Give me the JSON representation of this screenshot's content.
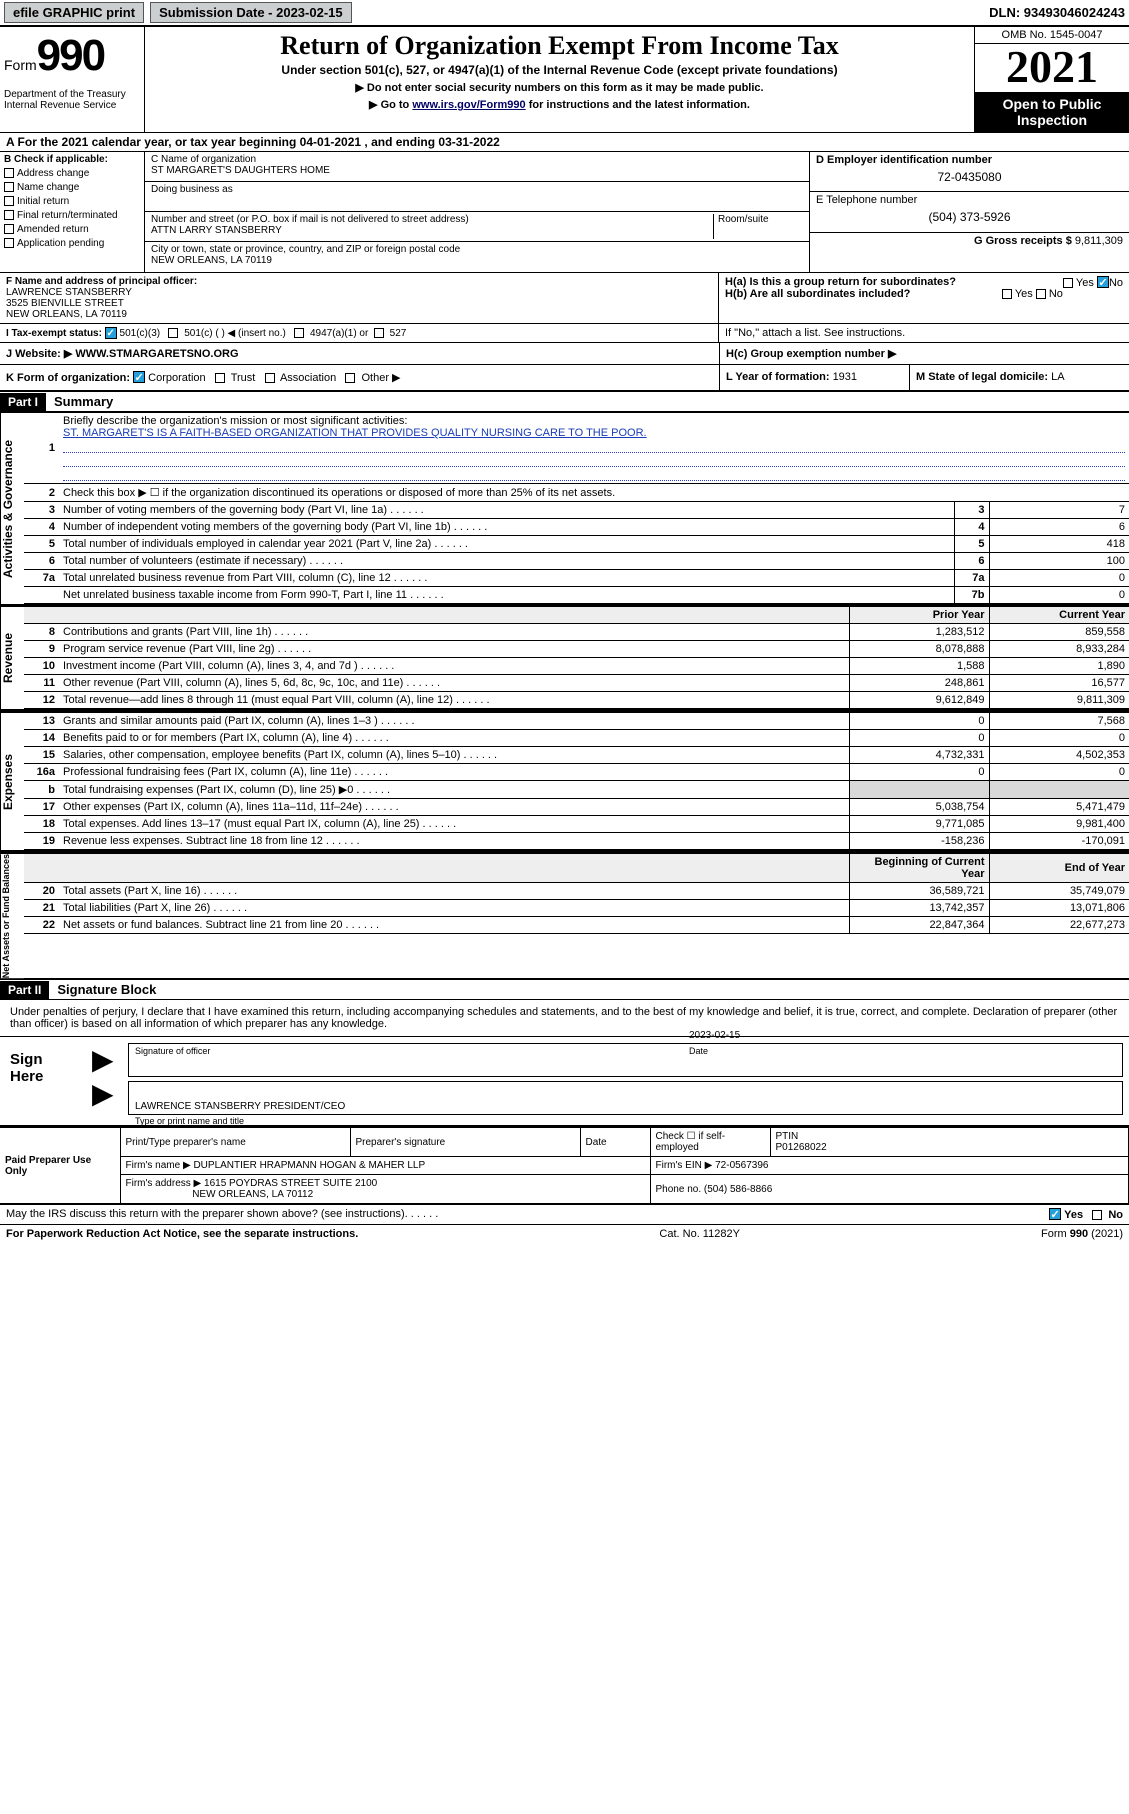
{
  "top": {
    "efile": "efile GRAPHIC print",
    "subdate_label": "Submission Date - ",
    "subdate": "2023-02-15",
    "dln": "DLN: 93493046024243"
  },
  "header": {
    "form": "Form",
    "num": "990",
    "dept": "Department of the Treasury\nInternal Revenue Service",
    "title": "Return of Organization Exempt From Income Tax",
    "subtitle": "Under section 501(c), 527, or 4947(a)(1) of the Internal Revenue Code (except private foundations)",
    "instr1": "Do not enter social security numbers on this form as it may be made public.",
    "instr2_pre": "Go to ",
    "instr2_link": "www.irs.gov/Form990",
    "instr2_post": " for instructions and the latest information.",
    "omb": "OMB No. 1545-0047",
    "year": "2021",
    "inspection": "Open to Public Inspection"
  },
  "a": {
    "label": "A For the 2021 calendar year, or tax year beginning ",
    "begin": "04-01-2021",
    "mid": " , and ending ",
    "end": "03-31-2022"
  },
  "b": {
    "header": "B Check if applicable:",
    "opts": [
      "Address change",
      "Name change",
      "Initial return",
      "Final return/terminated",
      "Amended return",
      "Application pending"
    ]
  },
  "c": {
    "name_label": "C Name of organization",
    "name": "ST MARGARET'S DAUGHTERS HOME",
    "dba_label": "Doing business as",
    "addr_label": "Number and street (or P.O. box if mail is not delivered to street address)",
    "room_label": "Room/suite",
    "addr": "ATTN LARRY STANSBERRY",
    "city_label": "City or town, state or province, country, and ZIP or foreign postal code",
    "city": "NEW ORLEANS, LA  70119"
  },
  "d": {
    "label": "D Employer identification number",
    "val": "72-0435080"
  },
  "e": {
    "label": "E Telephone number",
    "val": "(504) 373-5926"
  },
  "g": {
    "label": "G Gross receipts $ ",
    "val": "9,811,309"
  },
  "f": {
    "label": "F Name and address of principal officer:",
    "name": "LAWRENCE STANSBERRY",
    "addr1": "3525 BIENVILLE STREET",
    "addr2": "NEW ORLEANS, LA  70119"
  },
  "h": {
    "a": "H(a)  Is this a group return for subordinates?",
    "a_yes": "Yes",
    "a_no": "No",
    "b": "H(b)  Are all subordinates included?",
    "b_yes": "Yes",
    "b_no": "No",
    "note": "If \"No,\" attach a list. See instructions.",
    "c": "H(c)  Group exemption number ▶"
  },
  "i": {
    "label": "I   Tax-exempt status:",
    "o1": "501(c)(3)",
    "o2": "501(c) (  ) ◀ (insert no.)",
    "o3": "4947(a)(1) or",
    "o4": "527"
  },
  "j": {
    "label": "J   Website: ▶ ",
    "val": "WWW.STMARGARETSNO.ORG"
  },
  "k": {
    "label": "K Form of organization:",
    "opts": [
      "Corporation",
      "Trust",
      "Association",
      "Other ▶"
    ]
  },
  "l": {
    "label": "L Year of formation: ",
    "val": "1931"
  },
  "m": {
    "label": "M State of legal domicile: ",
    "val": "LA"
  },
  "part1": {
    "bar": "Part I",
    "title": "Summary",
    "l1": "Briefly describe the organization's mission or most significant activities:",
    "mission": "ST. MARGARET'S IS A FAITH-BASED ORGANIZATION THAT PROVIDES QUALITY NURSING CARE TO THE POOR.",
    "l2": "Check this box ▶ ☐  if the organization discontinued its operations or disposed of more than 25% of its net assets.",
    "rows_gov": [
      {
        "n": "3",
        "label": "Number of voting members of the governing body (Part VI, line 1a)",
        "box": "3",
        "val": "7"
      },
      {
        "n": "4",
        "label": "Number of independent voting members of the governing body (Part VI, line 1b)",
        "box": "4",
        "val": "6"
      },
      {
        "n": "5",
        "label": "Total number of individuals employed in calendar year 2021 (Part V, line 2a)",
        "box": "5",
        "val": "418"
      },
      {
        "n": "6",
        "label": "Total number of volunteers (estimate if necessary)",
        "box": "6",
        "val": "100"
      },
      {
        "n": "7a",
        "label": "Total unrelated business revenue from Part VIII, column (C), line 12",
        "box": "7a",
        "val": "0"
      },
      {
        "n": "  ",
        "label": "Net unrelated business taxable income from Form 990-T, Part I, line 11",
        "box": "7b",
        "val": "0"
      }
    ],
    "hd_prior": "Prior Year",
    "hd_curr": "Current Year",
    "rows_rev": [
      {
        "n": "8",
        "label": "Contributions and grants (Part VIII, line 1h)",
        "p": "1,283,512",
        "c": "859,558"
      },
      {
        "n": "9",
        "label": "Program service revenue (Part VIII, line 2g)",
        "p": "8,078,888",
        "c": "8,933,284"
      },
      {
        "n": "10",
        "label": "Investment income (Part VIII, column (A), lines 3, 4, and 7d )",
        "p": "1,588",
        "c": "1,890"
      },
      {
        "n": "11",
        "label": "Other revenue (Part VIII, column (A), lines 5, 6d, 8c, 9c, 10c, and 11e)",
        "p": "248,861",
        "c": "16,577"
      },
      {
        "n": "12",
        "label": "Total revenue—add lines 8 through 11 (must equal Part VIII, column (A), line 12)",
        "p": "9,612,849",
        "c": "9,811,309"
      }
    ],
    "rows_exp": [
      {
        "n": "13",
        "label": "Grants and similar amounts paid (Part IX, column (A), lines 1–3 )",
        "p": "0",
        "c": "7,568"
      },
      {
        "n": "14",
        "label": "Benefits paid to or for members (Part IX, column (A), line 4)",
        "p": "0",
        "c": "0"
      },
      {
        "n": "15",
        "label": "Salaries, other compensation, employee benefits (Part IX, column (A), lines 5–10)",
        "p": "4,732,331",
        "c": "4,502,353"
      },
      {
        "n": "16a",
        "label": "Professional fundraising fees (Part IX, column (A), line 11e)",
        "p": "0",
        "c": "0"
      },
      {
        "n": "b",
        "label": "Total fundraising expenses (Part IX, column (D), line 25) ▶0",
        "p": "",
        "c": "",
        "shade": true
      },
      {
        "n": "17",
        "label": "Other expenses (Part IX, column (A), lines 11a–11d, 11f–24e)",
        "p": "5,038,754",
        "c": "5,471,479"
      },
      {
        "n": "18",
        "label": "Total expenses. Add lines 13–17 (must equal Part IX, column (A), line 25)",
        "p": "9,771,085",
        "c": "9,981,400"
      },
      {
        "n": "19",
        "label": "Revenue less expenses. Subtract line 18 from line 12",
        "p": "-158,236",
        "c": "-170,091"
      }
    ],
    "hd_begin": "Beginning of Current Year",
    "hd_end": "End of Year",
    "rows_net": [
      {
        "n": "20",
        "label": "Total assets (Part X, line 16)",
        "p": "36,589,721",
        "c": "35,749,079"
      },
      {
        "n": "21",
        "label": "Total liabilities (Part X, line 26)",
        "p": "13,742,357",
        "c": "13,071,806"
      },
      {
        "n": "22",
        "label": "Net assets or fund balances. Subtract line 21 from line 20",
        "p": "22,847,364",
        "c": "22,677,273"
      }
    ],
    "side_gov": "Activities & Governance",
    "side_rev": "Revenue",
    "side_exp": "Expenses",
    "side_net": "Net Assets or Fund Balances"
  },
  "part2": {
    "bar": "Part II",
    "title": "Signature Block",
    "decl": "Under penalties of perjury, I declare that I have examined this return, including accompanying schedules and statements, and to the best of my knowledge and belief, it is true, correct, and complete. Declaration of preparer (other than officer) is based on all information of which preparer has any knowledge.",
    "sign_here": "Sign Here",
    "sig_officer": "Signature of officer",
    "sig_date_label": "Date",
    "sig_date": "2023-02-15",
    "sig_name": "LAWRENCE STANSBERRY  PRESIDENT/CEO",
    "sig_name_label": "Type or print name and title"
  },
  "prep": {
    "side": "Paid Preparer Use Only",
    "h1": "Print/Type preparer's name",
    "h2": "Preparer's signature",
    "h3": "Date",
    "h4_pre": "Check ☐ if self-employed",
    "h5": "PTIN",
    "ptin": "P01268022",
    "firm_label": "Firm's name    ▶ ",
    "firm": "DUPLANTIER HRAPMANN HOGAN & MAHER LLP",
    "ein_label": "Firm's EIN ▶ ",
    "ein": "72-0567396",
    "addr_label": "Firm's address ▶ ",
    "addr1": "1615 POYDRAS STREET SUITE 2100",
    "addr2": "NEW ORLEANS, LA  70112",
    "phone_label": "Phone no. ",
    "phone": "(504) 586-8866"
  },
  "foot": {
    "q": "May the IRS discuss this return with the preparer shown above? (see instructions)",
    "yes": "Yes",
    "no": "No",
    "pra": "For Paperwork Reduction Act Notice, see the separate instructions.",
    "cat": "Cat. No. 11282Y",
    "form": "Form 990 (2021)"
  },
  "colors": {
    "accent": "#26a0da",
    "link": "#1a3db8",
    "shade": "#d9d9d9"
  }
}
